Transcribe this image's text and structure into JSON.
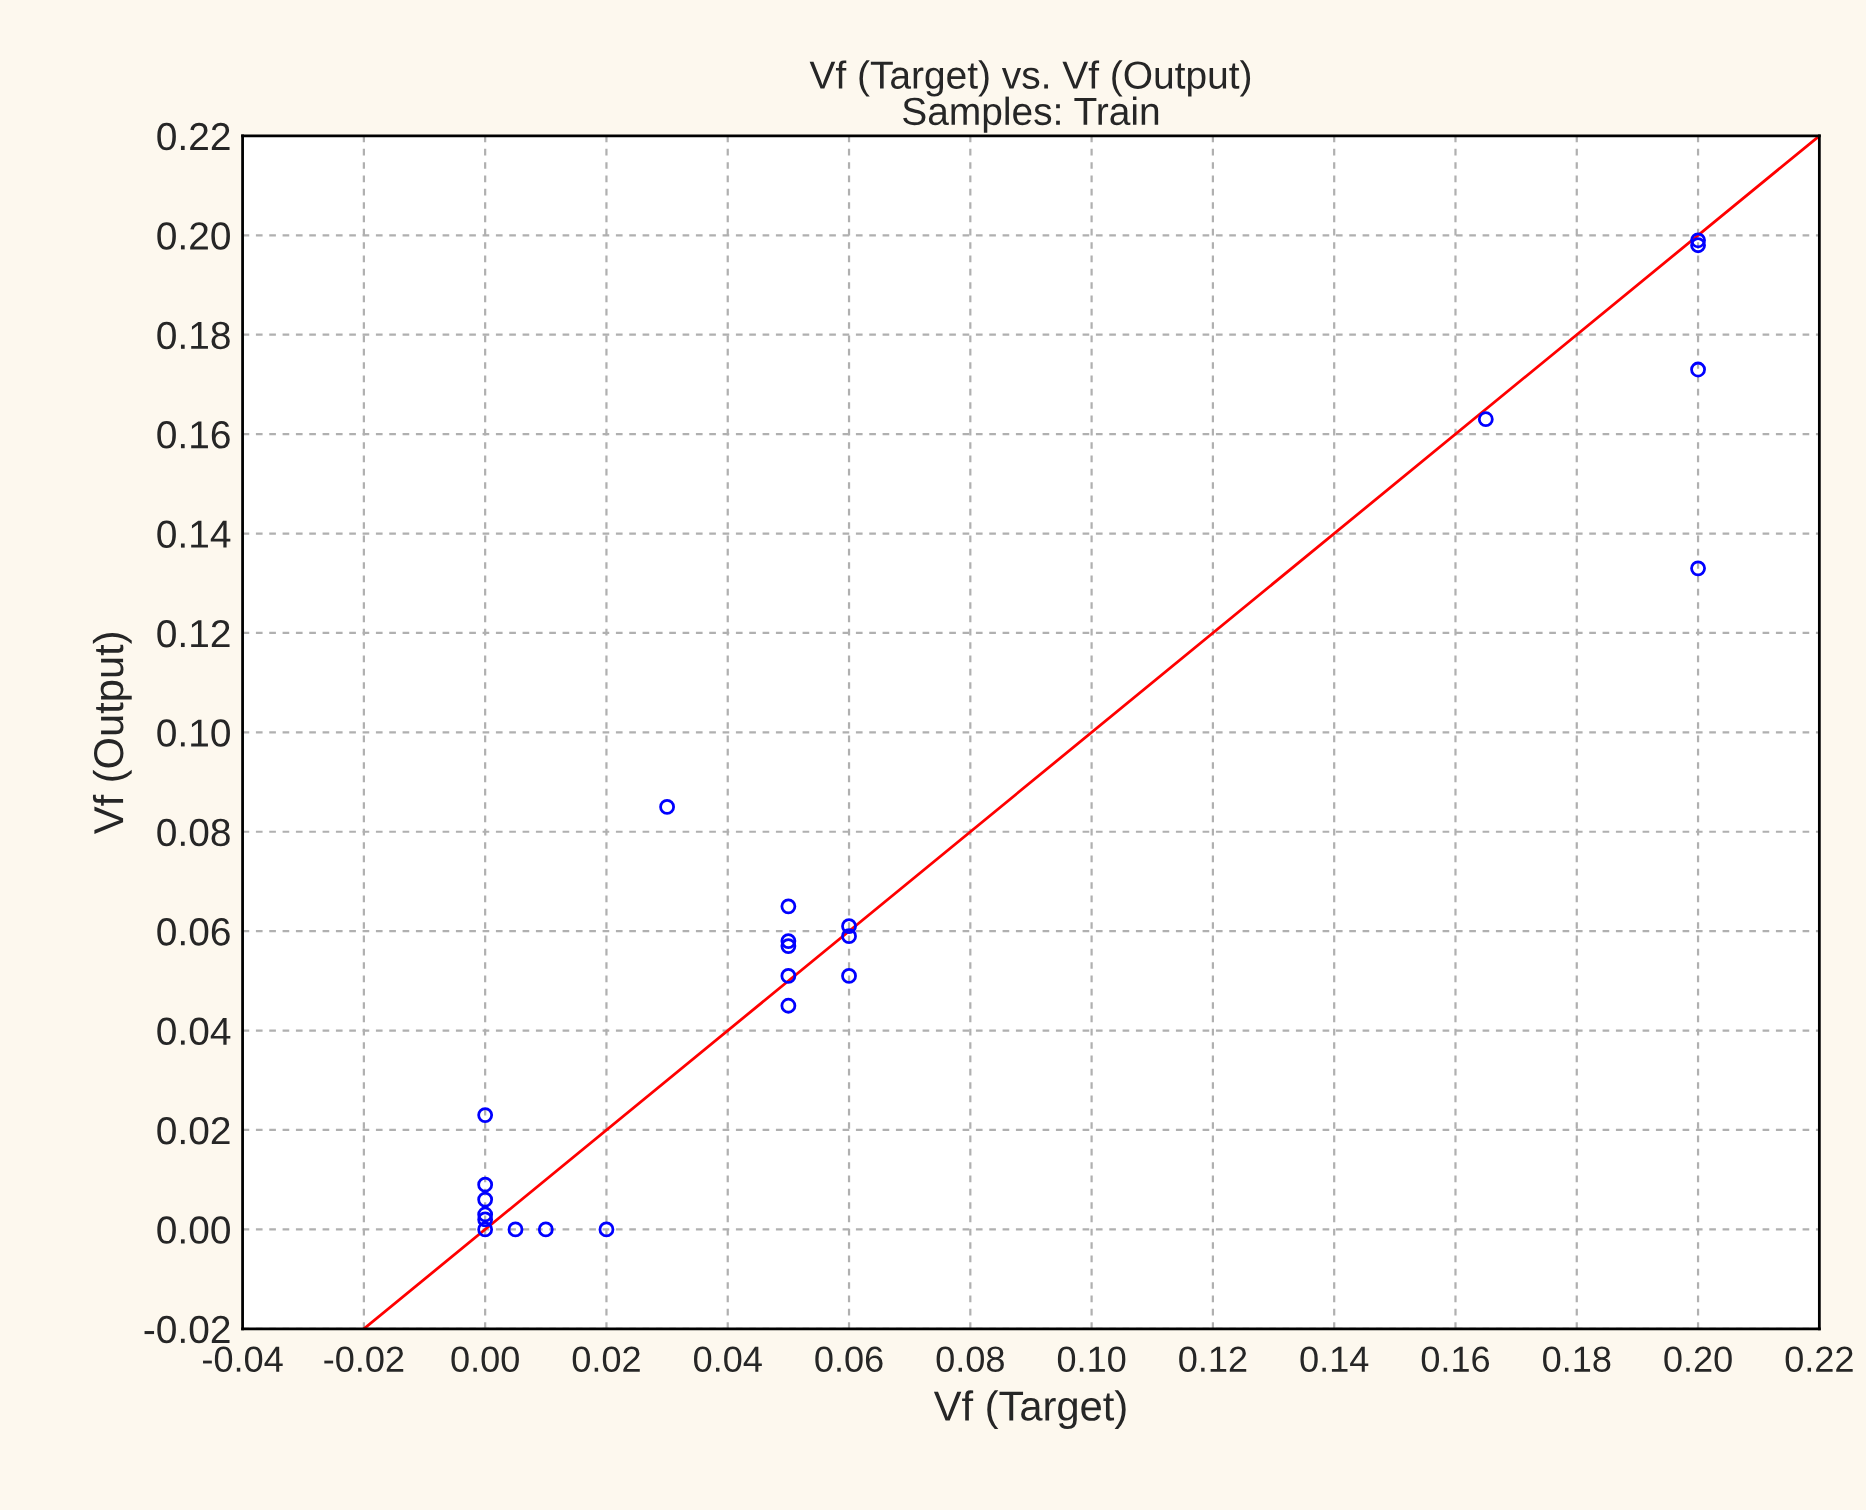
{
  "chart_data": {
    "type": "scatter",
    "title": "Vf (Target) vs. Vf (Output)",
    "subtitle": "Samples: Train",
    "xlabel": "Vf (Target)",
    "ylabel": "Vf (Output)",
    "series": [
      {
        "type": "scatter",
        "color": "#0000ff",
        "marker": "circle",
        "x": [
          0.03,
          0.05,
          0.05,
          0.05,
          0.05,
          0.05,
          0.06,
          0.06,
          0.06,
          0.0,
          0.0,
          0.0,
          0.0,
          0.0,
          0.0,
          0.005,
          0.01,
          0.02,
          0.165,
          0.2,
          0.2,
          0.2,
          0.2
        ],
        "values": [
          0.085,
          0.065,
          0.057,
          0.058,
          0.051,
          0.045,
          0.061,
          0.059,
          0.051,
          0.023,
          0.009,
          0.006,
          0.003,
          0.002,
          0.0,
          0.0,
          0.0,
          0.0,
          0.163,
          0.199,
          0.198,
          0.173,
          0.133
        ]
      },
      {
        "type": "line",
        "color": "#ff0000",
        "marker": "none",
        "x": [
          -0.02,
          0.22
        ],
        "values": [
          -0.02,
          0.22
        ]
      }
    ],
    "xlim": [
      -0.04,
      0.22
    ],
    "ylim": [
      -0.02,
      0.22
    ],
    "xticks": [
      {
        "value": -0.04,
        "label": "-0.04"
      },
      {
        "value": -0.02,
        "label": "-0.02"
      },
      {
        "value": 0,
        "label": "0.00"
      },
      {
        "value": 0.02,
        "label": "0.02"
      },
      {
        "value": 0.04,
        "label": "0.04"
      },
      {
        "value": 0.06,
        "label": "0.06"
      },
      {
        "value": 0.08,
        "label": "0.08"
      },
      {
        "value": 0.1,
        "label": "0.10"
      },
      {
        "value": 0.12,
        "label": "0.12"
      },
      {
        "value": 0.14,
        "label": "0.14"
      },
      {
        "value": 0.16,
        "label": "0.16"
      },
      {
        "value": 0.18,
        "label": "0.18"
      },
      {
        "value": 0.2,
        "label": "0.20"
      },
      {
        "value": 0.22,
        "label": "0.22"
      }
    ],
    "yticks": [
      {
        "value": -0.02,
        "label": "-0.02"
      },
      {
        "value": 0,
        "label": "0.00"
      },
      {
        "value": 0.02,
        "label": "0.02"
      },
      {
        "value": 0.04,
        "label": "0.04"
      },
      {
        "value": 0.06,
        "label": "0.06"
      },
      {
        "value": 0.08,
        "label": "0.08"
      },
      {
        "value": 0.1,
        "label": "0.10"
      },
      {
        "value": 0.12,
        "label": "0.12"
      },
      {
        "value": 0.14,
        "label": "0.14"
      },
      {
        "value": 0.16,
        "label": "0.16"
      },
      {
        "value": 0.18,
        "label": "0.18"
      },
      {
        "value": 0.2,
        "label": "0.20"
      },
      {
        "value": 0.22,
        "label": "0.22"
      }
    ],
    "grid": true,
    "legend": false
  }
}
